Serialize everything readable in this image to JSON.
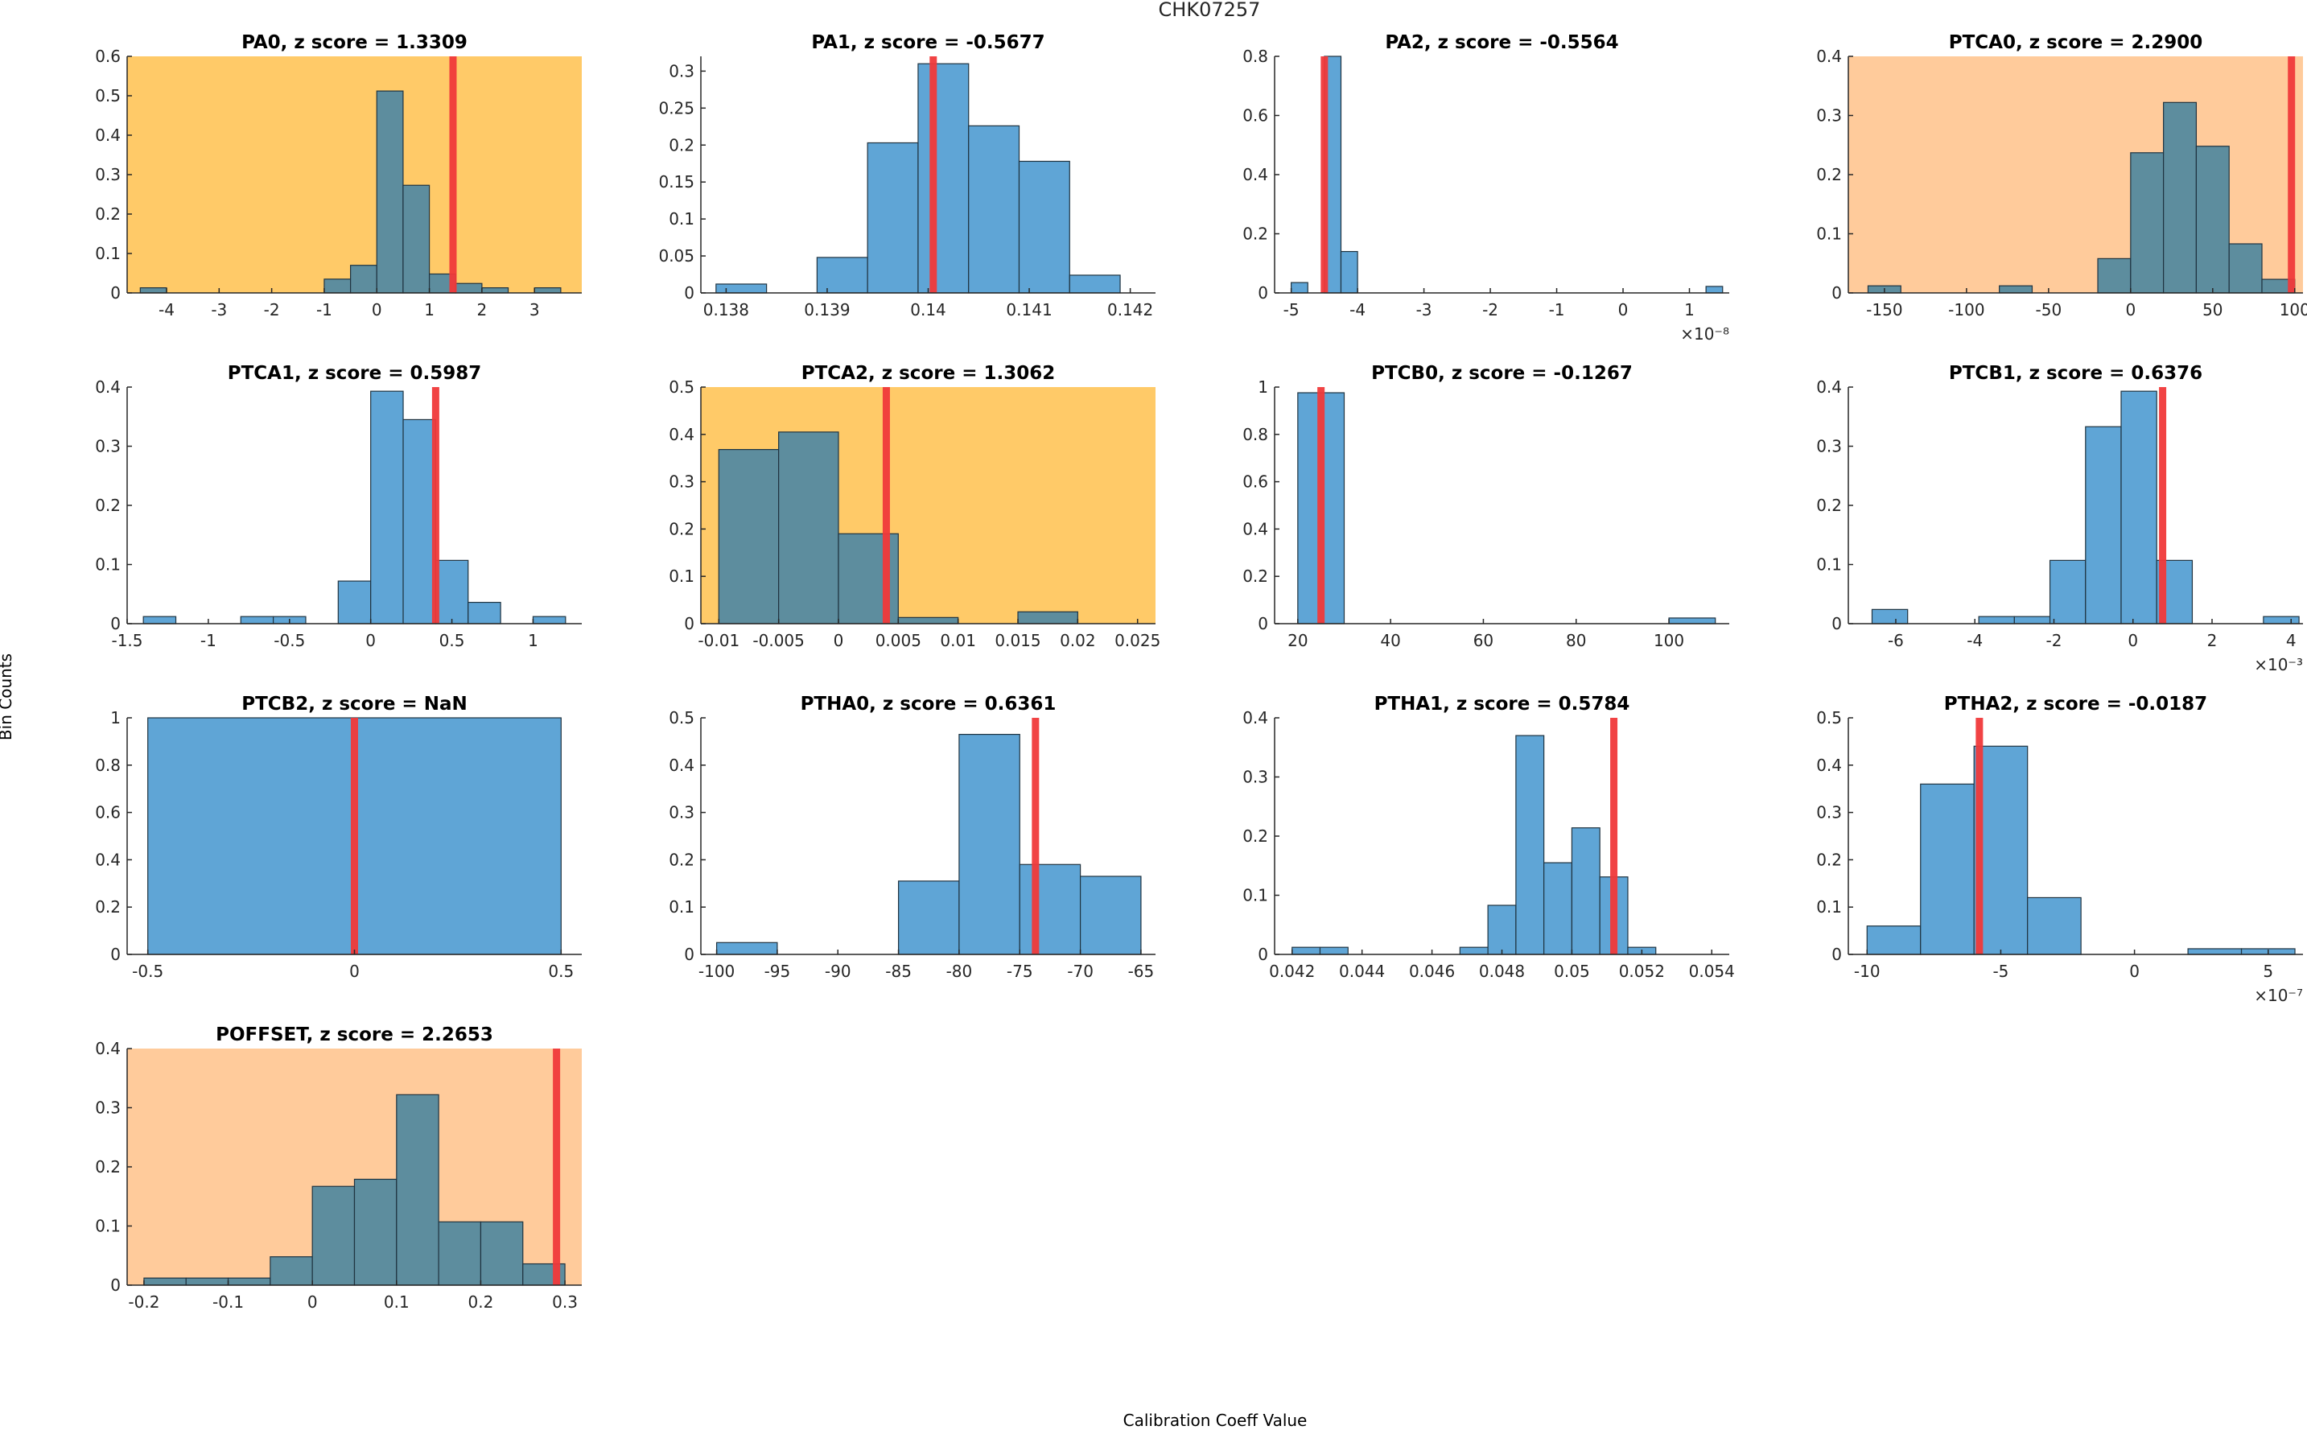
{
  "figure": {
    "suptitle": "CHK07257",
    "xlabel": "Calibration Coeff Value",
    "ylabel": "Bin Counts"
  },
  "colors": {
    "bar": "#5fa5d6",
    "bar_shaded": "#5d8d9e",
    "edge": "#1f3340",
    "marker": "#f0393a",
    "warn": "#ffca68",
    "alert": "#ffcb9b",
    "axis": "#262626"
  },
  "chart_data": [
    {
      "type": "bar",
      "title": "PA0, z score = 1.3309",
      "bg": "warn",
      "xlim": [
        -4.75,
        3.9
      ],
      "ylim": [
        0,
        0.6
      ],
      "edges": [
        -4.5,
        -4,
        -3.5,
        -3,
        -2.5,
        -2,
        -1.5,
        -1,
        -0.5,
        0,
        0.5,
        1,
        1.5,
        2,
        2.5,
        3,
        3.5
      ],
      "values": [
        0.013,
        0,
        0,
        0,
        0,
        0,
        0,
        0.035,
        0.07,
        0.512,
        0.273,
        0.048,
        0.024,
        0.013,
        0,
        0.013
      ],
      "marker": 1.45,
      "xticks": [
        -4,
        -3,
        -2,
        -1,
        0,
        1,
        2,
        3
      ],
      "xticklabels": [
        "-4",
        "-3",
        "-2",
        "-1",
        "0",
        "1",
        "2",
        "3"
      ],
      "yticks": [
        0,
        0.1,
        0.2,
        0.3,
        0.4,
        0.5,
        0.6
      ],
      "yticklabels": [
        "0",
        "0.1",
        "0.2",
        "0.3",
        "0.4",
        "0.5",
        "0.6"
      ],
      "exponent": ""
    },
    {
      "type": "bar",
      "title": "PA1, z score = -0.5677",
      "bg": "none",
      "xlim": [
        0.13775,
        0.14225
      ],
      "ylim": [
        0,
        0.32
      ],
      "edges": [
        0.1379,
        0.1384,
        0.1389,
        0.1394,
        0.1399,
        0.1404,
        0.1409,
        0.1414,
        0.1419
      ],
      "values": [
        0.012,
        0,
        0.048,
        0.203,
        0.31,
        0.226,
        0.178,
        0.024
      ],
      "marker": 0.14005,
      "xticks": [
        0.138,
        0.139,
        0.14,
        0.141,
        0.142
      ],
      "xticklabels": [
        "0.138",
        "0.139",
        "0.14",
        "0.141",
        "0.142"
      ],
      "yticks": [
        0,
        0.05,
        0.1,
        0.15,
        0.2,
        0.25,
        0.3
      ],
      "yticklabels": [
        "0",
        "0.05",
        "0.1",
        "0.15",
        "0.2",
        "0.25",
        "0.3"
      ],
      "exponent": ""
    },
    {
      "type": "bar",
      "title": "PA2, z score = -0.5564",
      "bg": "none",
      "xlim": [
        -5.25,
        1.6
      ],
      "ylim": [
        0,
        0.8
      ],
      "edges": [
        -5,
        -4.75,
        -4.5,
        -4.25,
        -4,
        -3.75,
        -3.5,
        -3.25,
        -3,
        -2.75,
        -2.5,
        -2.25,
        -2,
        -1.75,
        -1.5,
        -1.25,
        -1,
        -0.75,
        -0.5,
        -0.25,
        0,
        0.25,
        0.5,
        0.75,
        1,
        1.25,
        1.5
      ],
      "values": [
        0.035,
        0,
        0.8,
        0.14,
        0,
        0,
        0,
        0,
        0,
        0,
        0,
        0,
        0,
        0,
        0,
        0,
        0,
        0,
        0,
        0,
        0,
        0,
        0,
        0,
        0,
        0.022
      ],
      "marker": -4.5,
      "xticks": [
        -5,
        -4,
        -3,
        -2,
        -1,
        0,
        1
      ],
      "xticklabels": [
        "-5",
        "-4",
        "-3",
        "-2",
        "-1",
        "0",
        "1"
      ],
      "yticks": [
        0,
        0.2,
        0.4,
        0.6,
        0.8
      ],
      "yticklabels": [
        "0",
        "0.2",
        "0.4",
        "0.6",
        "0.8"
      ],
      "exponent": "×10⁻⁸"
    },
    {
      "type": "bar",
      "title": "PTCA0, z score = 2.2900",
      "bg": "alert",
      "xlim": [
        -172,
        105
      ],
      "ylim": [
        0,
        0.4
      ],
      "edges": [
        -160,
        -140,
        -120,
        -100,
        -80,
        -60,
        -40,
        -20,
        0,
        20,
        40,
        60,
        80,
        100
      ],
      "values": [
        0.012,
        0,
        0,
        0,
        0.012,
        0,
        0,
        0.058,
        0.237,
        0.322,
        0.248,
        0.083,
        0.023
      ],
      "marker": 98,
      "xticks": [
        -150,
        -100,
        -50,
        0,
        50,
        100
      ],
      "xticklabels": [
        "-150",
        "-100",
        "-50",
        "0",
        "50",
        "100"
      ],
      "yticks": [
        0,
        0.1,
        0.2,
        0.3,
        0.4
      ],
      "yticklabels": [
        "0",
        "0.1",
        "0.2",
        "0.3",
        "0.4"
      ],
      "exponent": ""
    },
    {
      "type": "bar",
      "title": "PTCA1, z score = 0.5987",
      "bg": "none",
      "xlim": [
        -1.5,
        1.3
      ],
      "ylim": [
        0,
        0.4
      ],
      "edges": [
        -1.4,
        -1.2,
        -1,
        -0.8,
        -0.6,
        -0.4,
        -0.2,
        0,
        0.2,
        0.4,
        0.6,
        0.8,
        1,
        1.2
      ],
      "values": [
        0.012,
        0,
        0,
        0.012,
        0.012,
        0,
        0.072,
        0.393,
        0.345,
        0.107,
        0.036,
        0,
        0.012
      ],
      "marker": 0.4,
      "xticks": [
        -1.5,
        -1,
        -0.5,
        0,
        0.5,
        1
      ],
      "xticklabels": [
        "-1.5",
        "-1",
        "-0.5",
        "0",
        "0.5",
        "1"
      ],
      "yticks": [
        0,
        0.1,
        0.2,
        0.3,
        0.4
      ],
      "yticklabels": [
        "0",
        "0.1",
        "0.2",
        "0.3",
        "0.4"
      ],
      "exponent": ""
    },
    {
      "type": "bar",
      "title": "PTCA2, z score = 1.3062",
      "bg": "warn",
      "xlim": [
        -0.0115,
        0.0265
      ],
      "ylim": [
        0,
        0.5
      ],
      "edges": [
        -0.01,
        -0.005,
        0,
        0.005,
        0.01,
        0.015,
        0.02,
        0.025
      ],
      "values": [
        0.368,
        0.405,
        0.19,
        0.013,
        0,
        0.025,
        0
      ],
      "marker": 0.004,
      "xticks": [
        -0.01,
        -0.005,
        0,
        0.005,
        0.01,
        0.015,
        0.02,
        0.025
      ],
      "xticklabels": [
        "-0.01",
        "-0.005",
        "0",
        "0.005",
        "0.01",
        "0.015",
        "0.02",
        "0.025"
      ],
      "yticks": [
        0,
        0.1,
        0.2,
        0.3,
        0.4,
        0.5
      ],
      "yticklabels": [
        "0",
        "0.1",
        "0.2",
        "0.3",
        "0.4",
        "0.5"
      ],
      "exponent": ""
    },
    {
      "type": "bar",
      "title": "PTCB0, z score = -0.1267",
      "bg": "none",
      "xlim": [
        15,
        113
      ],
      "ylim": [
        0,
        1
      ],
      "edges": [
        20,
        30,
        40,
        50,
        60,
        70,
        80,
        90,
        100,
        110
      ],
      "values": [
        0.976,
        0,
        0,
        0,
        0,
        0,
        0,
        0,
        0.024
      ],
      "marker": 25,
      "xticks": [
        20,
        40,
        60,
        80,
        100
      ],
      "xticklabels": [
        "20",
        "40",
        "60",
        "80",
        "100"
      ],
      "yticks": [
        0,
        0.2,
        0.4,
        0.6,
        0.8,
        1
      ],
      "yticklabels": [
        "0",
        "0.2",
        "0.4",
        "0.6",
        "0.8",
        "1"
      ],
      "exponent": ""
    },
    {
      "type": "bar",
      "title": "PTCB1, z score = 0.6376",
      "bg": "none",
      "xlim": [
        -7.2,
        4.3
      ],
      "ylim": [
        0,
        0.4
      ],
      "edges": [
        -6.6,
        -5.7,
        -4.8,
        -3.9,
        -3,
        -2.1,
        -1.2,
        -0.3,
        0.6,
        1.5,
        2.4,
        3.3,
        4.2
      ],
      "values": [
        0.024,
        0,
        0,
        0.012,
        0.012,
        0.107,
        0.333,
        0.393,
        0.107,
        0,
        0,
        0.012
      ],
      "marker": 0.75,
      "xticks": [
        -6,
        -4,
        -2,
        0,
        2,
        4
      ],
      "xticklabels": [
        "-6",
        "-4",
        "-2",
        "0",
        "2",
        "4"
      ],
      "yticks": [
        0,
        0.1,
        0.2,
        0.3,
        0.4
      ],
      "yticklabels": [
        "0",
        "0.1",
        "0.2",
        "0.3",
        "0.4"
      ],
      "exponent": "×10⁻³"
    },
    {
      "type": "bar",
      "title": "PTCB2, z score = NaN",
      "bg": "none",
      "xlim": [
        -0.55,
        0.55
      ],
      "ylim": [
        0,
        1
      ],
      "edges": [
        -0.5,
        0.5
      ],
      "values": [
        1
      ],
      "marker": 0,
      "xticks": [
        -0.5,
        0,
        0.5
      ],
      "xticklabels": [
        "-0.5",
        "0",
        "0.5"
      ],
      "yticks": [
        0,
        0.2,
        0.4,
        0.6,
        0.8,
        1
      ],
      "yticklabels": [
        "0",
        "0.2",
        "0.4",
        "0.6",
        "0.8",
        "1"
      ],
      "exponent": ""
    },
    {
      "type": "bar",
      "title": "PTHA0, z score = 0.6361",
      "bg": "none",
      "xlim": [
        -101.3,
        -63.8
      ],
      "ylim": [
        0,
        0.5
      ],
      "edges": [
        -100,
        -95,
        -90,
        -85,
        -80,
        -75,
        -70,
        -65
      ],
      "values": [
        0.025,
        0,
        0,
        0.155,
        0.465,
        0.19,
        0.165
      ],
      "marker": -73.7,
      "xticks": [
        -100,
        -95,
        -90,
        -85,
        -80,
        -75,
        -70,
        -65
      ],
      "xticklabels": [
        "-100",
        "-95",
        "-90",
        "-85",
        "-80",
        "-75",
        "-70",
        "-65"
      ],
      "yticks": [
        0,
        0.1,
        0.2,
        0.3,
        0.4,
        0.5
      ],
      "yticklabels": [
        "0",
        "0.1",
        "0.2",
        "0.3",
        "0.4",
        "0.5"
      ],
      "exponent": ""
    },
    {
      "type": "bar",
      "title": "PTHA1, z score = 0.5784",
      "bg": "none",
      "xlim": [
        0.0415,
        0.0545
      ],
      "ylim": [
        0,
        0.4
      ],
      "edges": [
        0.042,
        0.0428,
        0.0436,
        0.0444,
        0.0452,
        0.046,
        0.0468,
        0.0476,
        0.0484,
        0.0492,
        0.05,
        0.0508,
        0.0516,
        0.0524,
        0.0532
      ],
      "values": [
        0.012,
        0.012,
        0,
        0,
        0,
        0,
        0.012,
        0.083,
        0.37,
        0.155,
        0.214,
        0.131,
        0.012,
        0
      ],
      "marker": 0.0512,
      "xticks": [
        0.042,
        0.044,
        0.046,
        0.048,
        0.05,
        0.052,
        0.054
      ],
      "xticklabels": [
        "0.042",
        "0.044",
        "0.046",
        "0.048",
        "0.05",
        "0.052",
        "0.054"
      ],
      "yticks": [
        0,
        0.1,
        0.2,
        0.3,
        0.4
      ],
      "yticklabels": [
        "0",
        "0.1",
        "0.2",
        "0.3",
        "0.4"
      ],
      "exponent": ""
    },
    {
      "type": "bar",
      "title": "PTHA2, z score = -0.0187",
      "bg": "none",
      "xlim": [
        -10.7,
        6.3
      ],
      "ylim": [
        0,
        0.5
      ],
      "edges": [
        -10,
        -8,
        -6,
        -4,
        -2,
        0,
        2,
        4,
        6
      ],
      "values": [
        0.06,
        0.36,
        0.44,
        0.12,
        0,
        0,
        0.012,
        0.012
      ],
      "marker": -5.8,
      "xticks": [
        -10,
        -5,
        0,
        5
      ],
      "xticklabels": [
        "-10",
        "-5",
        "0",
        "5"
      ],
      "yticks": [
        0,
        0.1,
        0.2,
        0.3,
        0.4,
        0.5
      ],
      "yticklabels": [
        "0",
        "0.1",
        "0.2",
        "0.3",
        "0.4",
        "0.5"
      ],
      "exponent": "×10⁻⁷"
    },
    {
      "type": "bar",
      "title": "POFFSET, z score = 2.2653",
      "bg": "alert",
      "xlim": [
        -0.22,
        0.32
      ],
      "ylim": [
        0,
        0.4
      ],
      "edges": [
        -0.2,
        -0.15,
        -0.1,
        -0.05,
        0,
        0.05,
        0.1,
        0.15,
        0.2,
        0.25,
        0.3
      ],
      "values": [
        0.012,
        0.012,
        0.012,
        0.048,
        0.167,
        0.179,
        0.322,
        0.107,
        0.107,
        0.036
      ],
      "marker": 0.29,
      "xticks": [
        -0.2,
        -0.1,
        0,
        0.1,
        0.2,
        0.3
      ],
      "xticklabels": [
        "-0.2",
        "-0.1",
        "0",
        "0.1",
        "0.2",
        "0.3"
      ],
      "yticks": [
        0,
        0.1,
        0.2,
        0.3,
        0.4
      ],
      "yticklabels": [
        "0",
        "0.1",
        "0.2",
        "0.3",
        "0.4"
      ],
      "exponent": ""
    }
  ]
}
